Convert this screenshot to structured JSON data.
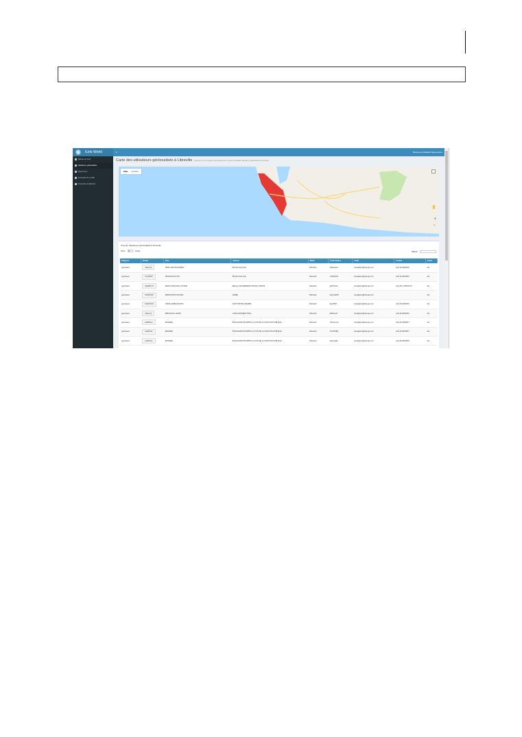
{
  "app": {
    "name": "ILink World",
    "welcome": "Bienvenue Makkah Ngouombou"
  },
  "sidebar": {
    "items": [
      {
        "label": "Tableau de bord",
        "active": false
      },
      {
        "label": "Utilisateurs géolocalisés",
        "active": true
      },
      {
        "label": "Superviseur",
        "active": false
      },
      {
        "label": "Demandes de crédits",
        "active": false
      },
      {
        "label": "Demandes d'adhésion",
        "active": false
      }
    ]
  },
  "page": {
    "title": "Carte des utilisateurs géolocalisés à Libreville",
    "subtitle": "Zoomez sur un marqueur géolocalisé pour voir plus de détails utilisateurs géolocalisés à Libreville"
  },
  "map": {
    "tabs": [
      "Plan",
      "Satellite"
    ],
    "active_tab": "Plan",
    "water_color": "#aadaff",
    "marker_color": "#e53935"
  },
  "table_card": {
    "title": "Tous les utilisateurs géolocalisés à Libreville",
    "show_label": "Show",
    "show_value": "10",
    "entries_label": "entries",
    "search_label": "Search:"
  },
  "table": {
    "headers": [
      "Catégorie",
      "Parrain",
      "Nom",
      "Adresse",
      "Métier",
      "Code membre",
      "Email",
      "Contact",
      "Action"
    ],
    "rows": [
      [
        "geolocated",
        "OMuevrq",
        "OBIKO MINTSA ROBERT",
        "BIS DE GUE GUE",
        "Mobicash",
        "Wfa9naJLru",
        "wimdgabon@ilink-app.com",
        "+241 66 00000032",
        "Voir"
      ],
      [
        "geolocated",
        "KUxMHcD",
        "NDONGNOU BYFZ",
        "BIS DE GUE GUE",
        "Mobicash",
        "cvPb2EzTE",
        "wimdgabon@ilink-app.com",
        "+241 66 00000024",
        "Voir"
      ],
      [
        "geolocated",
        "QQWPCvH",
        "DEKOU MANGANG JUSTINE",
        "BELLE VUE DERRIERE HOPITAL CHINOIS",
        "Mobicash",
        "g6rTKNL3I",
        "wimdgabon@ilink-app.com",
        "+241 66 1 2345678 18",
        "Voir"
      ],
      [
        "geolocated",
        "Ns0ZvHQO",
        "MBOBI ESSOO MILOBA",
        "AKEBE",
        "Mobicash",
        "fAxgTLaMtH",
        "wimdgabon@ilink-app.com",
        "",
        "Voir"
      ],
      [
        "geolocated",
        "Ns0ZvHQO",
        "ODDIE JAMES EVANDO",
        "SAINT MICHEL NKEMBO",
        "Mobicash",
        "EupV8tJP",
        "wimdgabon@ilink-app.com",
        "+241 66 00000033",
        "Voir"
      ],
      [
        "geolocated",
        "OMuevrq",
        "MBOUNGOU LEZOB",
        "CAMLA BATIMENT BS01",
        "Mobicash",
        "j9WtCLa17",
        "wimdgabon@ilink-app.com",
        "+241 66 00000034",
        "Voir"
      ],
      [
        "geolocated",
        "iuiNzDVue",
        "EPICERIE",
        "BOULEVARD TRIOMPHAL A COTE DE LA FONCTION PUBLIQUE",
        "Mobicash",
        "YfiCcdmYuu",
        "wimdgabon@ilink-app.com",
        "+241 66 00000877",
        "Voir"
      ],
      [
        "geolocated",
        "iuiNzDVue",
        "EPICERIE",
        "BOULEVARD TRIOMPHAL A COTE DE LA FONCTION PUBLIQUE",
        "Mobicash",
        "rXstYDKBQ",
        "wimdgabon@ilink-app.com",
        "+241 66 00000877",
        "Voir"
      ],
      [
        "geolocated",
        "iuiNzDVue",
        "EPICERIE",
        "BOULEVARD TRIOMPHAL A COTE DE LA FONCTION PUBLIQUE",
        "Mobicash",
        "tqFwecQjR",
        "wimdgabon@ilink-app.com",
        "+241 66 00000878",
        "Voir"
      ]
    ]
  }
}
